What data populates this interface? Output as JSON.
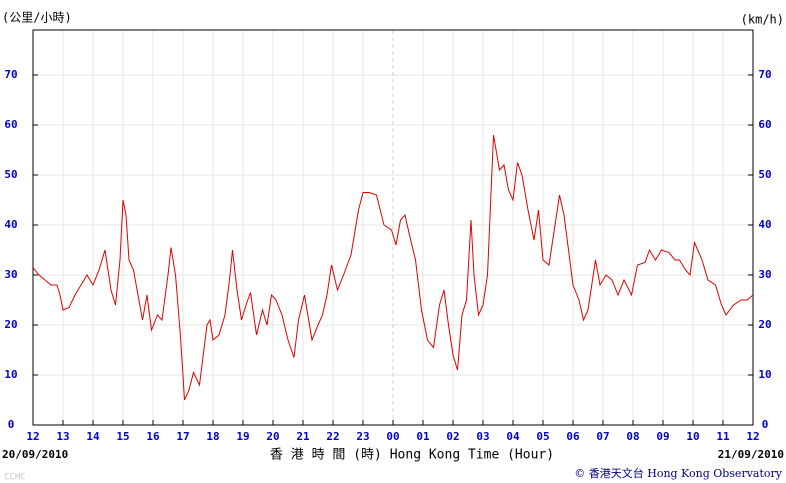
{
  "chart_data": {
    "type": "line",
    "y_label_left": "(公里/小時)",
    "y_label_right": "(km/h)",
    "x_label": "香 港 時 間 (時)  Hong Kong Time (Hour)",
    "start_date": "20/09/2010",
    "end_date": "21/09/2010",
    "watermark": "CCHC",
    "credit": "© 香港天文台 Hong Kong Observatory",
    "color": "#e00000",
    "grid": true,
    "xlim": [
      0,
      24
    ],
    "ylim": [
      0,
      79
    ],
    "yticks": [
      0,
      10,
      20,
      30,
      40,
      50,
      60,
      70
    ],
    "xticks": [
      {
        "value": 0,
        "label": "12"
      },
      {
        "value": 1,
        "label": "13"
      },
      {
        "value": 2,
        "label": "14"
      },
      {
        "value": 3,
        "label": "15"
      },
      {
        "value": 4,
        "label": "16"
      },
      {
        "value": 5,
        "label": "17"
      },
      {
        "value": 6,
        "label": "18"
      },
      {
        "value": 7,
        "label": "19"
      },
      {
        "value": 8,
        "label": "20"
      },
      {
        "value": 9,
        "label": "21"
      },
      {
        "value": 10,
        "label": "22"
      },
      {
        "value": 11,
        "label": "23"
      },
      {
        "value": 12,
        "label": "00"
      },
      {
        "value": 13,
        "label": "01"
      },
      {
        "value": 14,
        "label": "02"
      },
      {
        "value": 15,
        "label": "03"
      },
      {
        "value": 16,
        "label": "04"
      },
      {
        "value": 17,
        "label": "05"
      },
      {
        "value": 18,
        "label": "06"
      },
      {
        "value": 19,
        "label": "07"
      },
      {
        "value": 20,
        "label": "08"
      },
      {
        "value": 21,
        "label": "09"
      },
      {
        "value": 22,
        "label": "10"
      },
      {
        "value": 23,
        "label": "11"
      },
      {
        "value": 24,
        "label": "12"
      }
    ],
    "x": [
      0,
      0.2,
      0.4,
      0.6,
      0.8,
      0.9,
      1.0,
      1.2,
      1.4,
      1.6,
      1.8,
      2.0,
      2.2,
      2.4,
      2.6,
      2.75,
      2.9,
      3.0,
      3.1,
      3.2,
      3.35,
      3.5,
      3.65,
      3.8,
      3.95,
      4.15,
      4.3,
      4.5,
      4.6,
      4.75,
      4.9,
      5.0,
      5.05,
      5.2,
      5.35,
      5.55,
      5.8,
      5.9,
      6.0,
      6.2,
      6.4,
      6.55,
      6.65,
      6.8,
      6.95,
      7.1,
      7.25,
      7.45,
      7.65,
      7.8,
      7.95,
      8.1,
      8.3,
      8.5,
      8.7,
      8.85,
      9.05,
      9.3,
      9.5,
      9.65,
      9.8,
      9.95,
      10.15,
      10.35,
      10.6,
      10.85,
      11.0,
      11.2,
      11.45,
      11.7,
      11.95,
      12.1,
      12.25,
      12.4,
      12.55,
      12.75,
      12.95,
      13.15,
      13.35,
      13.55,
      13.7,
      13.85,
      14.0,
      14.15,
      14.3,
      14.45,
      14.6,
      14.7,
      14.85,
      15.0,
      15.15,
      15.35,
      15.55,
      15.7,
      15.85,
      16.0,
      16.15,
      16.3,
      16.5,
      16.7,
      16.85,
      17.0,
      17.2,
      17.4,
      17.55,
      17.7,
      17.85,
      18.0,
      18.2,
      18.35,
      18.5,
      18.75,
      18.9,
      19.1,
      19.3,
      19.5,
      19.7,
      19.95,
      20.15,
      20.4,
      20.55,
      20.75,
      20.95,
      21.2,
      21.4,
      21.55,
      21.75,
      21.9,
      22.05,
      22.3,
      22.5,
      22.75,
      22.95,
      23.1,
      23.35,
      23.6,
      23.8,
      24.0
    ],
    "values": [
      31.5,
      30,
      29,
      28,
      28,
      26,
      23,
      23.5,
      26,
      28,
      30,
      28,
      31,
      35,
      27,
      24,
      33,
      45,
      42,
      33,
      31,
      26,
      21,
      26,
      19,
      22,
      21,
      30,
      35.5,
      30,
      19,
      10,
      5,
      7,
      10.5,
      8,
      20,
      21,
      17,
      18,
      22,
      29,
      35,
      27,
      21,
      24,
      26.5,
      18,
      23,
      20,
      26,
      25,
      22,
      17,
      13.5,
      21,
      26,
      17,
      20,
      22,
      26,
      32,
      27,
      30,
      34,
      43,
      46.5,
      46.5,
      46,
      40,
      39,
      36,
      41,
      42,
      38,
      33,
      23,
      17,
      15.5,
      24,
      27,
      20,
      14,
      11,
      22,
      25,
      41,
      30,
      22,
      24,
      30,
      58,
      51,
      52,
      47,
      45,
      52.5,
      50,
      43,
      37,
      43,
      33,
      32,
      40,
      46,
      42,
      35,
      28,
      25,
      21,
      23,
      33,
      28,
      30,
      29,
      26,
      29,
      26,
      32,
      32.5,
      35,
      33,
      35,
      34.5,
      33,
      33,
      31,
      30,
      36.5,
      33,
      29,
      28,
      24,
      22,
      24,
      25,
      25,
      26
    ]
  }
}
